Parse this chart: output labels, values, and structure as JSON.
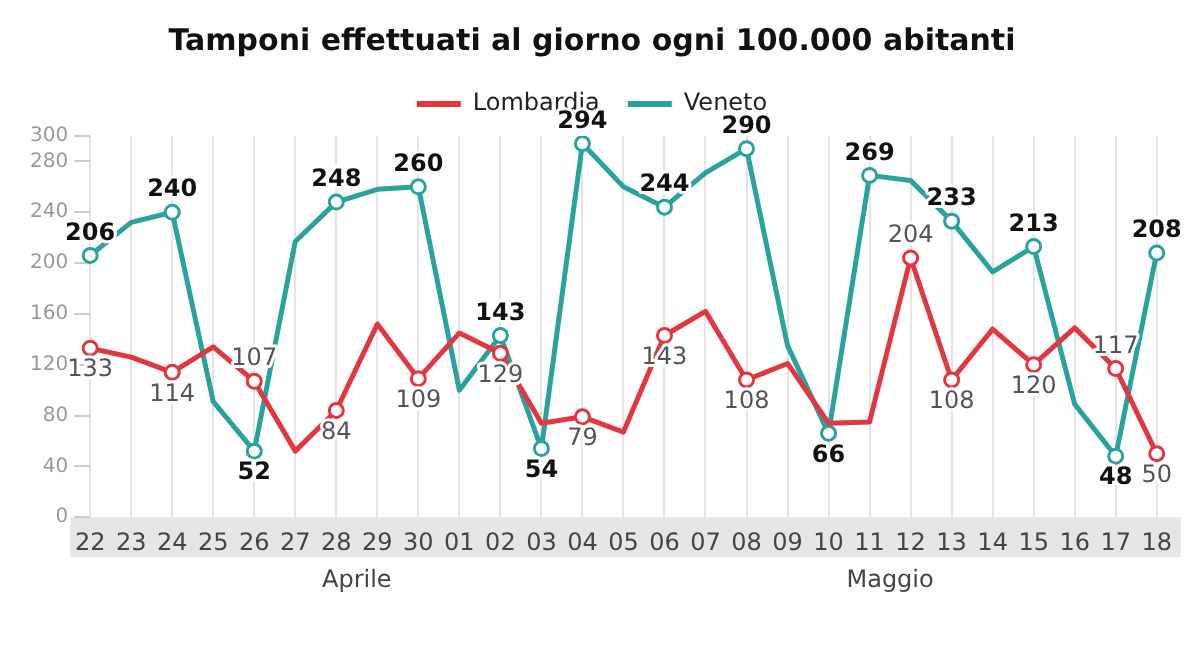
{
  "chart_data": {
    "type": "line",
    "title": "Tamponi effettuati al giorno ogni 100.000 abitanti",
    "categories": [
      "22",
      "23",
      "24",
      "25",
      "26",
      "27",
      "28",
      "29",
      "30",
      "01",
      "02",
      "03",
      "04",
      "05",
      "06",
      "07",
      "08",
      "09",
      "10",
      "11",
      "12",
      "13",
      "14",
      "15",
      "16",
      "17",
      "18"
    ],
    "series": [
      {
        "name": "Lombardia",
        "color": "#e23740",
        "values": [
          133,
          126,
          114,
          134,
          107,
          52,
          84,
          152,
          109,
          145,
          129,
          74,
          79,
          67,
          143,
          162,
          108,
          121,
          74,
          75,
          204,
          108,
          148,
          120,
          149,
          117,
          50
        ],
        "value_labels": [
          "133",
          null,
          "114",
          null,
          "107",
          null,
          "84",
          null,
          "109",
          null,
          "129",
          null,
          "79",
          null,
          "143",
          null,
          "108",
          null,
          null,
          null,
          "204",
          "108",
          null,
          "120",
          null,
          "117",
          "50"
        ]
      },
      {
        "name": "Veneto",
        "color": "#2aa39f",
        "values": [
          206,
          232,
          240,
          91,
          52,
          217,
          248,
          258,
          260,
          100,
          143,
          54,
          294,
          260,
          244,
          271,
          290,
          135,
          66,
          269,
          265,
          233,
          193,
          213,
          89,
          48,
          208
        ],
        "value_labels": [
          "206",
          null,
          "240",
          null,
          "52",
          null,
          "248",
          null,
          "260",
          null,
          "143",
          "54",
          "294",
          null,
          "244",
          null,
          "290",
          null,
          "66",
          "269",
          null,
          "233",
          null,
          "213",
          null,
          "48",
          "208"
        ]
      }
    ],
    "ylim": [
      0,
      300
    ],
    "yticks": [
      0,
      40,
      80,
      120,
      160,
      200,
      240,
      280,
      300
    ],
    "grid": "x",
    "legend": "top",
    "line_style": "solid",
    "annotations": [
      "Aprile",
      "Maggio"
    ]
  }
}
